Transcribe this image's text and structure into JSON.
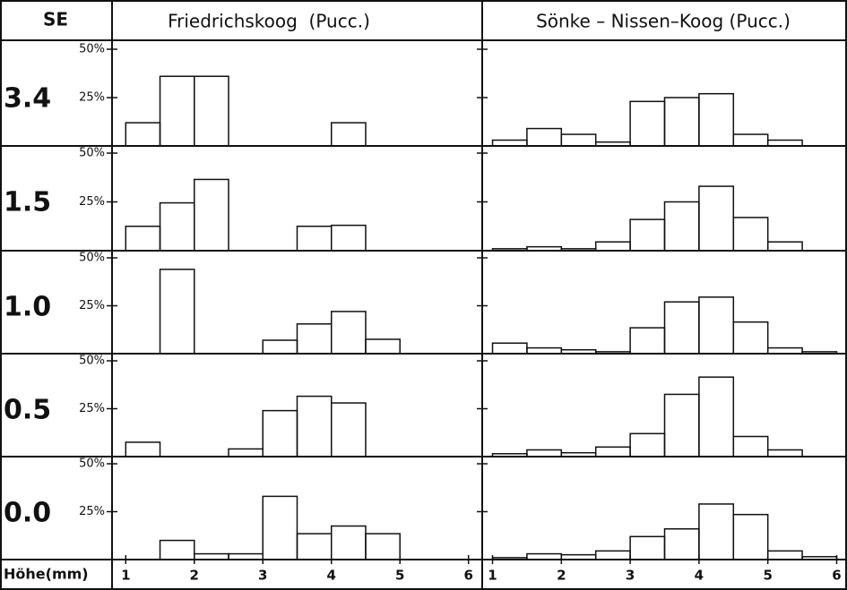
{
  "header": {
    "corner": "SE",
    "columns": [
      "Friedrichskoog  (Pucc.)",
      "Sönke – Nissen–Koog (Pucc.)"
    ],
    "rows": [
      "3.4",
      "1.5",
      "1.0",
      "0.5",
      "0.0"
    ],
    "xlabel": "Höhe(mm)"
  },
  "chart_data": [
    {
      "type": "histogram",
      "bins": [
        1,
        1.5,
        2,
        2.5,
        3,
        3.5,
        4,
        4.5,
        5,
        5.5,
        6
      ],
      "values": [
        12,
        36,
        36,
        0,
        0,
        0,
        12,
        0,
        0,
        0
      ],
      "xlim": [
        0.8,
        6.2
      ],
      "ylim": [
        0,
        50
      ],
      "yticks": [
        {
          "value": 25,
          "label": "25%"
        },
        {
          "value": 50,
          "label": "50%"
        }
      ]
    },
    {
      "type": "histogram",
      "bins": [
        1,
        1.5,
        2,
        2.5,
        3,
        3.5,
        4,
        4.5,
        5,
        5.5,
        6
      ],
      "values": [
        3,
        9,
        6,
        2,
        23,
        25,
        27,
        6,
        3,
        0
      ],
      "xlim": [
        0.85,
        6.15
      ],
      "ylim": [
        0,
        50
      ],
      "yticks": [
        25,
        50
      ]
    },
    {
      "type": "histogram",
      "bins": [
        1,
        1.5,
        2,
        2.5,
        3,
        3.5,
        4,
        4.5,
        5,
        5.5,
        6
      ],
      "values": [
        12.5,
        24.5,
        36.5,
        0,
        0,
        12.5,
        13,
        0,
        0,
        0
      ],
      "xlim": [
        0.8,
        6.2
      ],
      "ylim": [
        0,
        50
      ],
      "yticks": [
        {
          "value": 25,
          "label": "25%"
        },
        {
          "value": 50,
          "label": "50%"
        }
      ]
    },
    {
      "type": "histogram",
      "bins": [
        1,
        1.5,
        2,
        2.5,
        3,
        3.5,
        4,
        4.5,
        5,
        5.5,
        6
      ],
      "values": [
        1,
        2,
        1,
        4.5,
        16,
        25,
        33,
        17,
        4.5,
        0
      ],
      "xlim": [
        0.85,
        6.15
      ],
      "ylim": [
        0,
        50
      ],
      "yticks": [
        25,
        50
      ]
    },
    {
      "type": "histogram",
      "bins": [
        1,
        1.5,
        2,
        2.5,
        3,
        3.5,
        4,
        4.5,
        5,
        5.5,
        6
      ],
      "values": [
        0,
        44,
        0,
        0,
        7,
        15.5,
        22,
        7.5,
        0,
        0
      ],
      "xlim": [
        0.8,
        6.2
      ],
      "ylim": [
        0,
        50
      ],
      "yticks": [
        {
          "value": 25,
          "label": "25%"
        },
        {
          "value": 50,
          "label": "50%"
        }
      ]
    },
    {
      "type": "histogram",
      "bins": [
        1,
        1.5,
        2,
        2.5,
        3,
        3.5,
        4,
        4.5,
        5,
        5.5,
        6
      ],
      "values": [
        5.5,
        3,
        2,
        1,
        13.5,
        27,
        29.5,
        16.5,
        3,
        1
      ],
      "xlim": [
        0.85,
        6.15
      ],
      "ylim": [
        0,
        50
      ],
      "yticks": [
        25,
        50
      ]
    },
    {
      "type": "histogram",
      "bins": [
        1,
        1.5,
        2,
        2.5,
        3,
        3.5,
        4,
        4.5,
        5,
        5.5,
        6
      ],
      "values": [
        7.5,
        0,
        0,
        4,
        24,
        31.5,
        28,
        0,
        0,
        0
      ],
      "xlim": [
        0.8,
        6.2
      ],
      "ylim": [
        0,
        50
      ],
      "yticks": [
        {
          "value": 25,
          "label": "25%"
        },
        {
          "value": 50,
          "label": "50%"
        }
      ]
    },
    {
      "type": "histogram",
      "bins": [
        1,
        1.5,
        2,
        2.5,
        3,
        3.5,
        4,
        4.5,
        5,
        5.5,
        6
      ],
      "values": [
        1.5,
        3.5,
        2,
        5,
        12,
        32.5,
        41.5,
        10.5,
        3.5,
        0
      ],
      "xlim": [
        0.85,
        6.15
      ],
      "ylim": [
        0,
        50
      ],
      "yticks": [
        25,
        50
      ]
    },
    {
      "type": "histogram",
      "bins": [
        1,
        1.5,
        2,
        2.5,
        3,
        3.5,
        4,
        4.5,
        5,
        5.5,
        6
      ],
      "values": [
        0,
        10,
        3,
        3,
        33,
        13.5,
        17.5,
        13.5,
        0,
        0
      ],
      "xlim": [
        0.8,
        6.2
      ],
      "ylim": [
        0,
        50
      ],
      "yticks": [
        {
          "value": 25,
          "label": "25%"
        },
        {
          "value": 50,
          "label": "50%"
        }
      ],
      "xticks": [
        1,
        2,
        3,
        4,
        5,
        6
      ]
    },
    {
      "type": "histogram",
      "bins": [
        1,
        1.5,
        2,
        2.5,
        3,
        3.5,
        4,
        4.5,
        5,
        5.5,
        6
      ],
      "values": [
        1,
        3,
        2.5,
        4.5,
        12,
        16,
        29,
        23.5,
        4.5,
        1.5
      ],
      "xlim": [
        0.85,
        6.15
      ],
      "ylim": [
        0,
        50
      ],
      "yticks": [
        25,
        50
      ],
      "xticks": [
        1,
        2,
        3,
        4,
        5,
        6
      ]
    }
  ]
}
